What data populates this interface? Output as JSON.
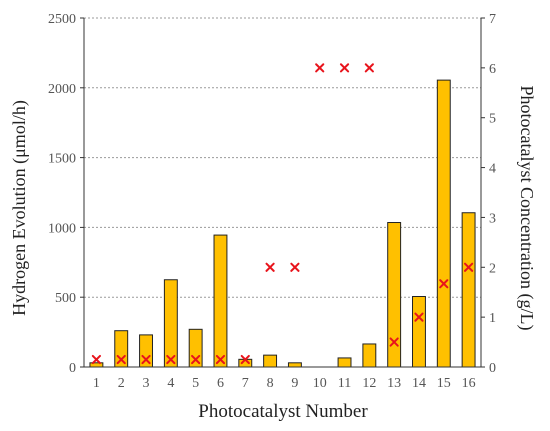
{
  "chart_data": {
    "type": "bar",
    "xlabel": "Photocatalyst Number",
    "ylabel": "Hydrogen Evolution (μmol/h)",
    "y2label": "Photocatalyst Concentration (g/L)",
    "categories": [
      "1",
      "2",
      "3",
      "4",
      "5",
      "6",
      "7",
      "8",
      "9",
      "10",
      "11",
      "12",
      "13",
      "14",
      "15",
      "16"
    ],
    "ylim": [
      0,
      2500
    ],
    "y_ticks": [
      0,
      500,
      1000,
      1500,
      2000,
      2500
    ],
    "y2lim": [
      0,
      7
    ],
    "y2_ticks": [
      0,
      1,
      2,
      3,
      4,
      5,
      6,
      7
    ],
    "grid": "horizontal dashed",
    "series": [
      {
        "axis": "left",
        "kind": "bar",
        "color": "#FFC000",
        "values": [
          30,
          260,
          230,
          625,
          270,
          945,
          55,
          85,
          30,
          0,
          65,
          165,
          1035,
          505,
          2055,
          1105
        ]
      },
      {
        "axis": "right",
        "kind": "scatter",
        "marker": "x",
        "color": "#E8141C",
        "values": [
          0.15,
          0.15,
          0.15,
          0.15,
          0.15,
          0.15,
          0.15,
          2.0,
          2.0,
          6.0,
          6.0,
          6.0,
          0.5,
          1.0,
          1.67,
          2.0
        ]
      }
    ]
  }
}
